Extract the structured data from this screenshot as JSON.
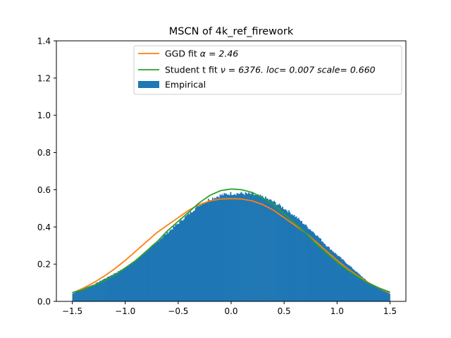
{
  "chart_data": {
    "type": "bar",
    "title": "MSCN of 4k_ref_firework",
    "xlabel": "",
    "ylabel": "",
    "xlim": [
      -1.65,
      1.65
    ],
    "ylim": [
      0,
      1.4
    ],
    "x_ticks": [
      "−1.5",
      "−1.0",
      "−0.5",
      "0.0",
      "0.5",
      "1.0",
      "1.5"
    ],
    "x_tick_values": [
      -1.5,
      -1.0,
      -0.5,
      0.0,
      0.5,
      1.0,
      1.5
    ],
    "y_ticks": [
      "0.0",
      "0.2",
      "0.4",
      "0.6",
      "0.8",
      "1.0",
      "1.2",
      "1.4"
    ],
    "y_tick_values": [
      0.0,
      0.2,
      0.4,
      0.6,
      0.8,
      1.0,
      1.2,
      1.4
    ],
    "grid": false,
    "legend_position": "top-right",
    "histogram": {
      "name": "Empirical",
      "color": "#1f77b4",
      "x": [
        -1.5,
        -1.4,
        -1.3,
        -1.2,
        -1.1,
        -1.0,
        -0.9,
        -0.8,
        -0.7,
        -0.6,
        -0.5,
        -0.4,
        -0.3,
        -0.2,
        -0.1,
        0.0,
        0.1,
        0.2,
        0.3,
        0.4,
        0.5,
        0.6,
        0.7,
        0.8,
        0.9,
        1.0,
        1.1,
        1.2,
        1.3,
        1.4,
        1.5
      ],
      "y": [
        0.04,
        0.07,
        0.09,
        0.12,
        0.15,
        0.18,
        0.22,
        0.27,
        0.32,
        0.37,
        0.42,
        0.47,
        0.52,
        0.55,
        0.57,
        0.58,
        0.58,
        0.575,
        0.56,
        0.535,
        0.5,
        0.46,
        0.41,
        0.36,
        0.3,
        0.25,
        0.2,
        0.15,
        0.1,
        0.07,
        0.04
      ]
    },
    "series": [
      {
        "name": "GGD fit α = 2.46",
        "name_prefix": "GGD fit ",
        "name_math": "α = 2.46",
        "color": "#ff7f0e",
        "x": [
          -1.5,
          -1.4,
          -1.3,
          -1.2,
          -1.1,
          -1.0,
          -0.9,
          -0.8,
          -0.7,
          -0.6,
          -0.5,
          -0.4,
          -0.3,
          -0.2,
          -0.1,
          0.0,
          0.1,
          0.2,
          0.3,
          0.4,
          0.5,
          0.6,
          0.7,
          0.8,
          0.9,
          1.0,
          1.1,
          1.2,
          1.3,
          1.4,
          1.5
        ],
        "y": [
          0.045,
          0.07,
          0.1,
          0.135,
          0.175,
          0.22,
          0.27,
          0.32,
          0.37,
          0.41,
          0.45,
          0.49,
          0.52,
          0.54,
          0.55,
          0.552,
          0.55,
          0.54,
          0.52,
          0.49,
          0.45,
          0.41,
          0.37,
          0.32,
          0.27,
          0.22,
          0.175,
          0.135,
          0.1,
          0.07,
          0.045
        ]
      },
      {
        "name": "Student t fit ν = 6376. loc= 0.007 scale= 0.660",
        "name_prefix": "Student t fit ",
        "name_math": "ν = 6376. loc= 0.007 scale= 0.660",
        "color": "#2ca02c",
        "x": [
          -1.5,
          -1.4,
          -1.3,
          -1.2,
          -1.1,
          -1.0,
          -0.9,
          -0.8,
          -0.7,
          -0.6,
          -0.5,
          -0.4,
          -0.3,
          -0.2,
          -0.1,
          0.0,
          0.1,
          0.2,
          0.3,
          0.4,
          0.5,
          0.6,
          0.7,
          0.8,
          0.9,
          1.0,
          1.1,
          1.2,
          1.3,
          1.4,
          1.5
        ],
        "y": [
          0.047,
          0.063,
          0.084,
          0.11,
          0.14,
          0.18,
          0.22,
          0.27,
          0.32,
          0.38,
          0.43,
          0.48,
          0.53,
          0.57,
          0.595,
          0.604,
          0.6,
          0.585,
          0.555,
          0.52,
          0.47,
          0.42,
          0.37,
          0.31,
          0.26,
          0.21,
          0.168,
          0.13,
          0.097,
          0.071,
          0.05
        ]
      }
    ]
  }
}
